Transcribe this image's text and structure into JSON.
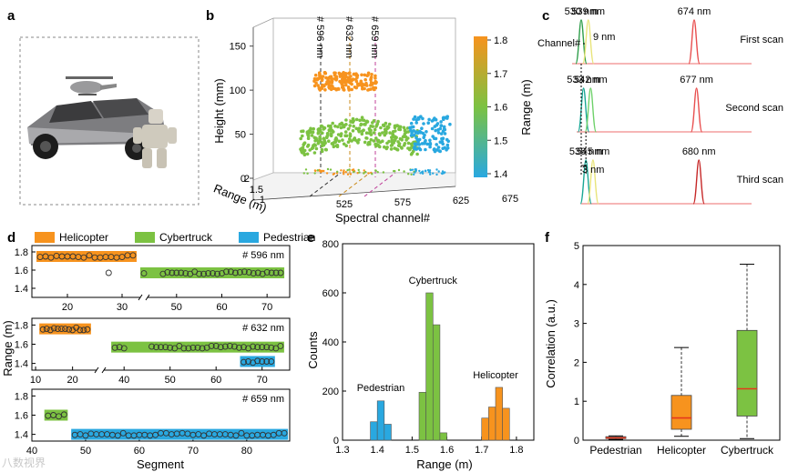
{
  "panels": {
    "a": "a",
    "b": "b",
    "c": "c",
    "d": "d",
    "e": "e",
    "f": "f"
  },
  "colors": {
    "helicopter": "#f7931e",
    "cybertruck": "#7cc242",
    "pedestrian": "#29a8e0",
    "green_dark": "#2e9e4a",
    "yellow": "#e8e47a",
    "red": "#e84f4f",
    "teal": "#19a795",
    "median": "#e4381c"
  },
  "chart_data": [
    {
      "panel": "b",
      "type": "scatter",
      "xlabel": "Spectral channel#",
      "ylabel": "Height (mm)",
      "zlabel": "Range (m)",
      "x_ticks": [
        "525",
        "575",
        "625",
        "675"
      ],
      "y_ticks": [
        "0",
        "50",
        "100",
        "150"
      ],
      "z_ticks": [
        "1",
        "1.5",
        "2"
      ],
      "channel_labels": [
        "# 596 nm",
        "# 632 nm",
        "# 659 nm"
      ],
      "colorbar_label": "Range (m)",
      "colorbar_ticks": [
        "1.4",
        "1.5",
        "1.6",
        "1.7",
        "1.8"
      ],
      "colorbar_range": [
        1.4,
        1.8
      ],
      "clusters": [
        {
          "object": "helicopter",
          "height_range": [
            100,
            120
          ],
          "range": 1.75
        },
        {
          "object": "cybertruck",
          "height_range": [
            30,
            80
          ],
          "range": 1.6
        },
        {
          "object": "pedestrian",
          "height_range": [
            30,
            70
          ],
          "range": 1.42
        }
      ]
    },
    {
      "panel": "c",
      "type": "line",
      "scans": [
        {
          "label": "First scan",
          "peaks": [
            530,
            539,
            674
          ],
          "peak_labels": [
            "530 nm",
            "539 nm",
            "674 nm"
          ]
        },
        {
          "label": "Second scan",
          "peaks": [
            533,
            542,
            677
          ],
          "peak_labels": [
            "533 nm",
            "542 nm",
            "677 nm"
          ]
        },
        {
          "label": "Third scan",
          "peaks": [
            536,
            545,
            680
          ],
          "peak_labels": [
            "536 nm",
            "545 nm",
            "680 nm"
          ]
        }
      ],
      "annotations": {
        "channel": "Channel#",
        "spacing": "9 nm",
        "step": "3 nm"
      }
    },
    {
      "panel": "d",
      "type": "scatter",
      "legend": [
        "Helicopter",
        "Cybertruck",
        "Pedestrian"
      ],
      "ylabel": "Range (m)",
      "xlabel": "Segment",
      "subplots": [
        {
          "tag": "# 596 nm",
          "yticks": [
            "1.4",
            "1.6",
            "1.8"
          ],
          "ylim": [
            1.3,
            1.87
          ],
          "xticks": [
            "20",
            "30",
            "50",
            "60",
            "70"
          ],
          "segments": [
            {
              "object": "helicopter",
              "x": [
                15,
                16,
                17,
                18,
                19,
                20,
                21,
                22,
                23,
                24,
                25,
                26,
                27,
                28,
                29,
                30,
                31,
                32
              ],
              "y": 1.75
            },
            {
              "object": "cybertruck",
              "x": [
                34,
                35,
                47,
                48,
                49,
                50,
                51,
                52,
                53,
                54,
                55,
                56,
                57,
                58,
                59,
                60,
                61,
                62,
                63,
                64,
                65,
                66,
                67,
                68,
                69,
                70,
                71,
                72,
                73
              ],
              "y": 1.57
            }
          ]
        },
        {
          "tag": "# 632 nm",
          "yticks": [
            "1.4",
            "1.6",
            "1.8"
          ],
          "ylim": [
            1.33,
            1.87
          ],
          "xticks": [
            "10",
            "20",
            "40",
            "50",
            "60",
            "70"
          ],
          "segments": [
            {
              "object": "helicopter",
              "x": [
                12,
                13,
                14,
                15,
                16,
                17,
                18,
                19,
                20,
                21,
                22,
                23,
                24
              ],
              "y": 1.76
            },
            {
              "object": "cybertruck",
              "x": [
                38,
                39,
                40,
                46,
                47,
                48,
                49,
                50,
                51,
                52,
                53,
                54,
                55,
                56,
                57,
                58,
                59,
                60,
                61,
                62,
                63,
                64,
                65,
                66,
                67,
                68,
                69,
                70,
                71,
                72,
                73,
                74
              ],
              "y": 1.57
            },
            {
              "object": "pedestrian",
              "x": [
                66,
                67,
                68,
                69,
                70,
                71,
                72
              ],
              "y": 1.42
            }
          ]
        },
        {
          "tag": "# 659 nm",
          "yticks": [
            "1.4",
            "1.6",
            "1.8"
          ],
          "ylim": [
            1.33,
            1.87
          ],
          "xticks": [
            "40",
            "50",
            "60",
            "70",
            "80"
          ],
          "segments": [
            {
              "object": "cybertruck",
              "x": [
                43,
                44,
                45,
                46
              ],
              "y": 1.6
            },
            {
              "object": "pedestrian",
              "x": [
                48,
                49,
                50,
                51,
                52,
                53,
                54,
                55,
                56,
                57,
                58,
                59,
                60,
                61,
                62,
                63,
                64,
                65,
                66,
                67,
                68,
                69,
                70,
                71,
                72,
                73,
                74,
                75,
                76,
                77,
                78,
                79,
                80,
                81,
                82,
                83,
                84,
                85,
                86,
                87
              ],
              "y": 1.4
            }
          ]
        }
      ]
    },
    {
      "panel": "e",
      "type": "bar",
      "xlabel": "Range (m)",
      "ylabel": "Counts",
      "xlim": [
        1.3,
        1.85
      ],
      "ylim": [
        0,
        800
      ],
      "xticks": [
        "1.3",
        "1.4",
        "1.5",
        "1.6",
        "1.7",
        "1.8"
      ],
      "yticks": [
        "0",
        "200",
        "400",
        "600",
        "800"
      ],
      "bin_width": 0.02,
      "series": [
        {
          "name": "Pedestrian",
          "bins": [
            1.39,
            1.41,
            1.43
          ],
          "values": [
            75,
            160,
            65
          ]
        },
        {
          "name": "Cybertruck",
          "bins": [
            1.53,
            1.55,
            1.57,
            1.59
          ],
          "values": [
            195,
            600,
            470,
            30
          ]
        },
        {
          "name": "Helicopter",
          "bins": [
            1.71,
            1.73,
            1.75,
            1.77
          ],
          "values": [
            90,
            135,
            215,
            130
          ]
        }
      ]
    },
    {
      "panel": "f",
      "type": "box",
      "ylabel": "Correlation (a.u.)",
      "ylim": [
        0,
        5
      ],
      "yticks": [
        "0",
        "1",
        "2",
        "3",
        "4",
        "5"
      ],
      "categories": [
        "Pedestrian",
        "Helicopter",
        "Cybertruck"
      ],
      "boxes": [
        {
          "min": 0.02,
          "q1": 0.04,
          "median": 0.06,
          "q3": 0.09,
          "max": 0.11
        },
        {
          "min": 0.1,
          "q1": 0.28,
          "median": 0.57,
          "q3": 1.15,
          "max": 2.38
        },
        {
          "min": 0.04,
          "q1": 0.62,
          "median": 1.32,
          "q3": 2.82,
          "max": 4.52
        }
      ]
    }
  ],
  "watermark": "八数视界"
}
